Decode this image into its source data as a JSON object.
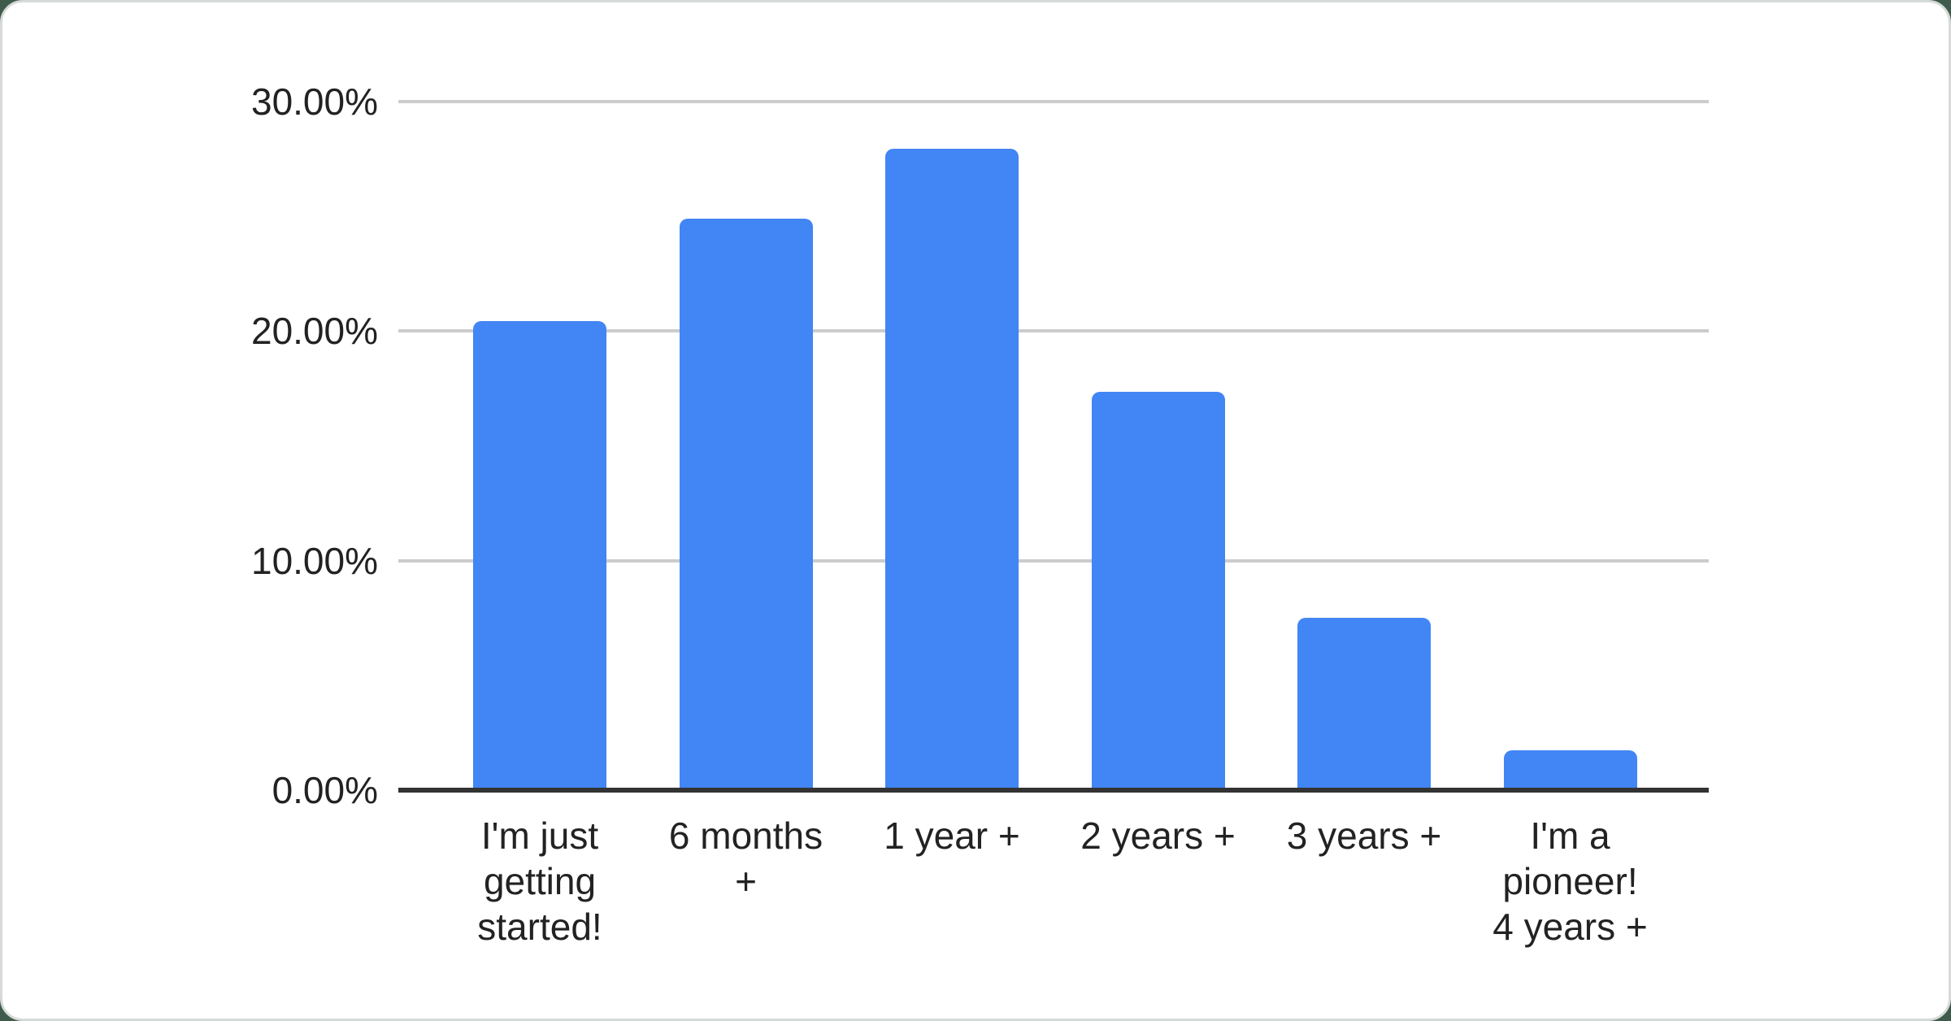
{
  "chart_data": {
    "type": "bar",
    "title": "",
    "xlabel": "",
    "ylabel": "",
    "categories": [
      "I'm just getting started!",
      "6 months +",
      "1 year +",
      "2 years +",
      "3 years +",
      "I'm a pioneer! 4 years +"
    ],
    "category_lines": [
      [
        "I'm just",
        "getting",
        "started!"
      ],
      [
        "6 months",
        "+"
      ],
      [
        "1 year +"
      ],
      [
        "2 years +"
      ],
      [
        "3 years +"
      ],
      [
        "I'm a",
        "pioneer!",
        "4 years +"
      ]
    ],
    "values": [
      20.45,
      24.9,
      27.95,
      17.35,
      7.5,
      1.75
    ],
    "unit": "%",
    "ylim": [
      0,
      30
    ],
    "yticks": [
      0,
      10,
      20,
      30
    ],
    "ytick_labels": [
      "0.00%",
      "10.00%",
      "20.00%",
      "30.00%"
    ],
    "grid": true,
    "legend_position": "none",
    "bar_color": "#4285f4",
    "gridline_color": "#cccccc",
    "axis_line_color": "#333333",
    "label_color": "#222222",
    "card_background": "#ffffff",
    "page_background": "#3f5b4b"
  }
}
